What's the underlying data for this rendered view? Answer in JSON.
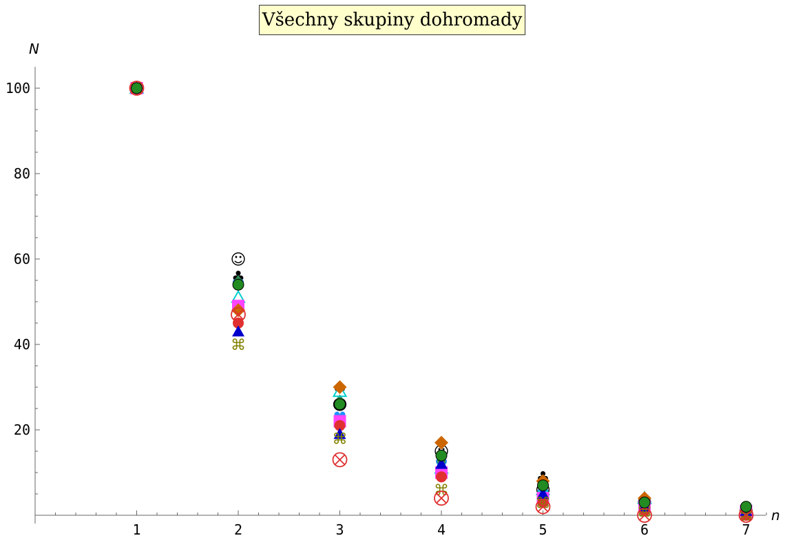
{
  "chart_data": {
    "type": "scatter",
    "title": "Všechny skupiny dohromady",
    "xlabel": "n",
    "ylabel": "N",
    "xlim": [
      0,
      7.2
    ],
    "ylim": [
      0,
      105
    ],
    "x_ticks": [
      1,
      2,
      3,
      4,
      5,
      6,
      7
    ],
    "y_ticks": [
      20,
      40,
      60,
      80,
      100
    ],
    "grid": false,
    "series": [
      {
        "color": "#000000",
        "marker": "smiley",
        "points": [
          [
            1,
            100
          ],
          [
            2,
            60
          ],
          [
            3,
            26
          ],
          [
            4,
            15
          ],
          [
            5,
            6
          ],
          [
            6,
            3
          ],
          [
            7,
            1
          ]
        ]
      },
      {
        "color": "#000000",
        "marker": "club",
        "points": [
          [
            1,
            100
          ],
          [
            2,
            56
          ],
          [
            3,
            30
          ],
          [
            4,
            14
          ],
          [
            5,
            9
          ],
          [
            6,
            3
          ],
          [
            7,
            2
          ]
        ]
      },
      {
        "color": "#1e90ff",
        "marker": "heart",
        "points": [
          [
            1,
            100
          ],
          [
            2,
            54
          ],
          [
            3,
            23
          ],
          [
            4,
            12
          ],
          [
            5,
            5
          ],
          [
            6,
            2
          ],
          [
            7,
            1
          ]
        ]
      },
      {
        "color": "#2e8b57",
        "marker": "spade",
        "points": [
          [
            1,
            100
          ],
          [
            2,
            55
          ],
          [
            3,
            27
          ],
          [
            4,
            13
          ],
          [
            5,
            7
          ],
          [
            6,
            3
          ],
          [
            7,
            1
          ]
        ]
      },
      {
        "color": "#00cfcf",
        "marker": "triangle-open",
        "points": [
          [
            1,
            100
          ],
          [
            2,
            51
          ],
          [
            3,
            29
          ],
          [
            4,
            11
          ],
          [
            5,
            6
          ],
          [
            6,
            4
          ],
          [
            7,
            1
          ]
        ]
      },
      {
        "color": "#ff44ff",
        "marker": "square",
        "points": [
          [
            1,
            100
          ],
          [
            2,
            49
          ],
          [
            3,
            22
          ],
          [
            4,
            10
          ],
          [
            5,
            4
          ],
          [
            6,
            2
          ],
          [
            7,
            1
          ]
        ]
      },
      {
        "color": "#cc6600",
        "marker": "diamond",
        "points": [
          [
            1,
            100
          ],
          [
            2,
            48
          ],
          [
            3,
            30
          ],
          [
            4,
            17
          ],
          [
            5,
            8
          ],
          [
            6,
            4
          ],
          [
            7,
            1
          ]
        ]
      },
      {
        "color": "#e03030",
        "marker": "circle",
        "points": [
          [
            1,
            100
          ],
          [
            2,
            45
          ],
          [
            3,
            21
          ],
          [
            4,
            9
          ],
          [
            5,
            3
          ],
          [
            6,
            1
          ],
          [
            7,
            0
          ]
        ]
      },
      {
        "color": "#0000cc",
        "marker": "triangle",
        "points": [
          [
            1,
            100
          ],
          [
            2,
            43
          ],
          [
            3,
            19
          ],
          [
            4,
            12
          ],
          [
            5,
            5
          ],
          [
            6,
            2
          ],
          [
            7,
            1
          ]
        ]
      },
      {
        "color": "#808000",
        "marker": "command",
        "points": [
          [
            1,
            100
          ],
          [
            2,
            40
          ],
          [
            3,
            18
          ],
          [
            4,
            6
          ],
          [
            5,
            3
          ],
          [
            6,
            1
          ],
          [
            7,
            0
          ]
        ]
      },
      {
        "color": "#e03030",
        "marker": "circle-x",
        "points": [
          [
            1,
            100
          ],
          [
            2,
            47
          ],
          [
            3,
            13
          ],
          [
            4,
            4
          ],
          [
            5,
            2
          ],
          [
            6,
            0
          ],
          [
            7,
            0
          ]
        ]
      },
      {
        "color": "#228b22",
        "marker": "circle-filled",
        "points": [
          [
            1,
            100
          ],
          [
            2,
            54
          ],
          [
            3,
            26
          ],
          [
            4,
            14
          ],
          [
            5,
            7
          ],
          [
            6,
            3
          ],
          [
            7,
            2
          ]
        ]
      }
    ]
  }
}
